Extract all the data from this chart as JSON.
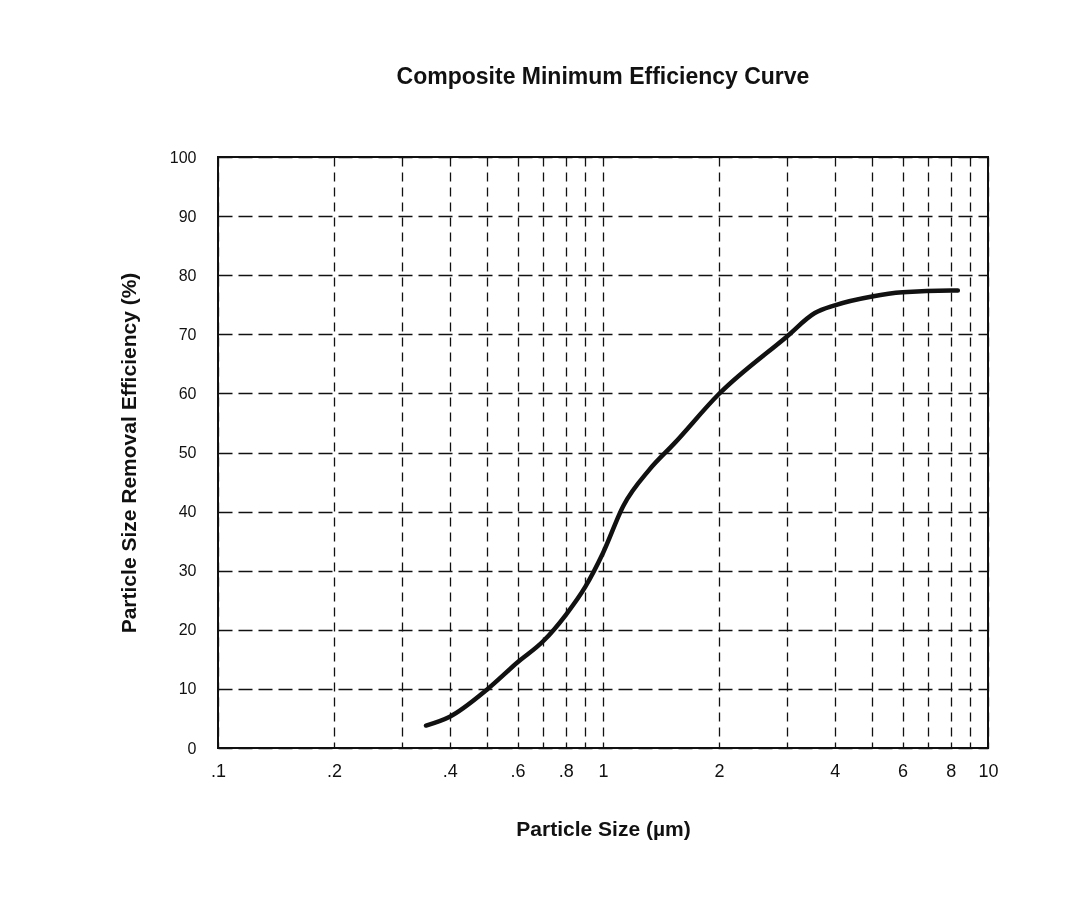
{
  "chart_data": {
    "type": "line",
    "title": "Composite Minimum Efficiency Curve",
    "xlabel": "Particle Size (µm)",
    "ylabel": "Particle Size Removal Efficiency (%)",
    "x": [
      0.347,
      0.4,
      0.5,
      0.6,
      0.7,
      0.8,
      0.9,
      1,
      1.13,
      1.32,
      1.53,
      2,
      3,
      3.55,
      4,
      5,
      6,
      8,
      8.35
    ],
    "series": [
      {
        "color": "#111111",
        "values": [
          3.8,
          5.3,
          9.9,
          14.5,
          18.1,
          22.5,
          27.3,
          33,
          41,
          47.1,
          51.5,
          59.9,
          69.6,
          73.6,
          74.9,
          76.4,
          77.1,
          77.4,
          77.4
        ]
      }
    ],
    "log": "x",
    "xlim": [
      0.1,
      10
    ],
    "xticks": [
      {
        "value": 0.1,
        "label": ".1"
      },
      {
        "value": 0.2,
        "label": ".2"
      },
      {
        "value": 0.3,
        "label": null
      },
      {
        "value": 0.4,
        "label": ".4"
      },
      {
        "value": 0.5,
        "label": null
      },
      {
        "value": 0.6,
        "label": ".6"
      },
      {
        "value": 0.7,
        "label": null
      },
      {
        "value": 0.8,
        "label": ".8"
      },
      {
        "value": 0.9,
        "label": null
      },
      1,
      2,
      {
        "value": 3,
        "label": null
      },
      4,
      {
        "value": 5,
        "label": null
      },
      6,
      {
        "value": 7,
        "label": null
      },
      8,
      {
        "value": 9,
        "label": null
      },
      10
    ],
    "ylim": [
      0,
      100
    ],
    "yticks": [
      0,
      10,
      20,
      30,
      40,
      50,
      60,
      70,
      80,
      90,
      100
    ],
    "grid": true,
    "line_style": "solid",
    "marker": "none"
  }
}
